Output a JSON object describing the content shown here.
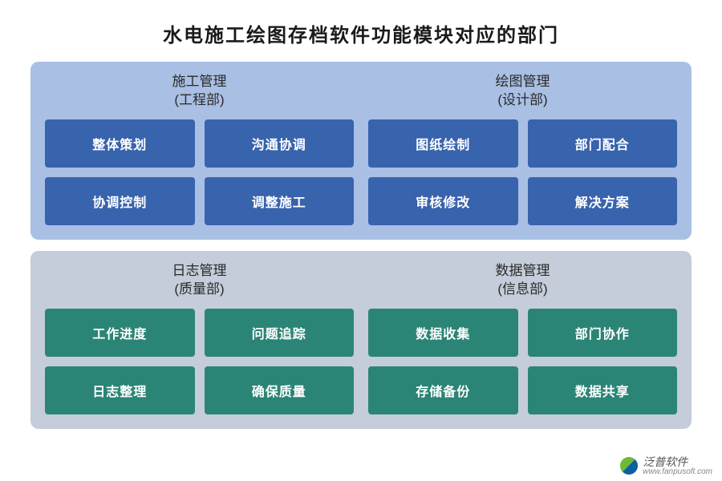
{
  "title": "水电施工绘图存档软件功能模块对应的部门",
  "panels": [
    {
      "bg": "#a9bfe3",
      "sections": [
        {
          "title_line1": "施工管理",
          "title_line2": "(工程部)",
          "item_bg": "#3863ad",
          "items": [
            "整体策划",
            "沟通协调",
            "协调控制",
            "调整施工"
          ]
        },
        {
          "title_line1": "绘图管理",
          "title_line2": "(设计部)",
          "item_bg": "#3863ad",
          "items": [
            "图纸绘制",
            "部门配合",
            "审核修改",
            "解决方案"
          ]
        }
      ]
    },
    {
      "bg": "#c4cdd9",
      "sections": [
        {
          "title_line1": "日志管理",
          "title_line2": "(质量部)",
          "item_bg": "#2b8576",
          "items": [
            "工作进度",
            "问题追踪",
            "日志整理",
            "确保质量"
          ]
        },
        {
          "title_line1": "数据管理",
          "title_line2": "(信息部)",
          "item_bg": "#2b8576",
          "items": [
            "数据收集",
            "部门协作",
            "存储备份",
            "数据共享"
          ]
        }
      ]
    }
  ],
  "watermark": {
    "cn": "泛普软件",
    "url": "www.fanpusoft.com"
  },
  "colors": {
    "title_text": "#1a1a1a",
    "section_header_text": "#2a2a2a",
    "item_text": "#ffffff",
    "background": "#ffffff"
  },
  "typography": {
    "title_fontsize": 24,
    "section_header_fontsize": 17,
    "item_fontsize": 16
  }
}
